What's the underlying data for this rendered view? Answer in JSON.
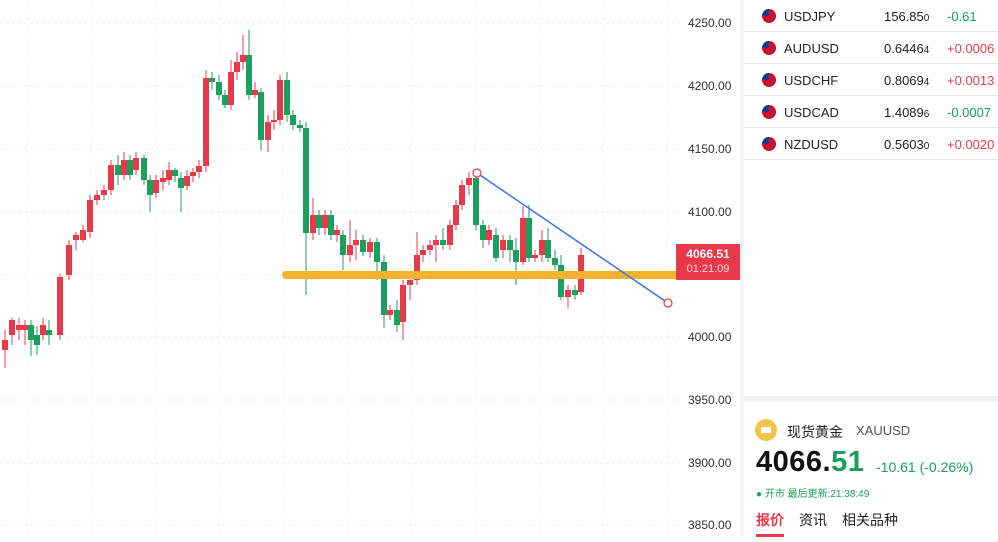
{
  "chart": {
    "y_axis_ticks": [
      "4250.00",
      "4200.00",
      "4150.00",
      "4100.00",
      "4000.00",
      "3950.00",
      "3900.00",
      "3850.00"
    ],
    "current_price": "4066.51",
    "countdown": "01:21:09",
    "up_color": "#e8394a",
    "down_color": "#19a05f",
    "support_line_color": "#f7b22e",
    "trendline_color": "#3a6ff0"
  },
  "watchlist": [
    {
      "symbol": "USDJPY",
      "last_main": "156.85",
      "last_sub": "0",
      "change": "-0.61",
      "direction": "down",
      "flag_icon": "us-flag-icon"
    },
    {
      "symbol": "AUDUSD",
      "last_main": "0.6446",
      "last_sub": "4",
      "change": "+0.0006",
      "direction": "up",
      "flag_icon": "au-flag-icon"
    },
    {
      "symbol": "USDCHF",
      "last_main": "0.8069",
      "last_sub": "4",
      "change": "+0.0013",
      "direction": "up",
      "flag_icon": "ch-flag-icon"
    },
    {
      "symbol": "USDCAD",
      "last_main": "1.4089",
      "last_sub": "6",
      "change": "-0.0007",
      "direction": "down",
      "flag_icon": "ca-flag-icon"
    },
    {
      "symbol": "NZDUSD",
      "last_main": "0.5603",
      "last_sub": "0",
      "change": "+0.0020",
      "direction": "up",
      "flag_icon": "nz-flag-icon"
    }
  ],
  "quote": {
    "name": "现货黄金",
    "code": "XAUUSD",
    "price_int": "4066.",
    "price_dec": "51",
    "change": "-10.61 (-0.26%)",
    "status": "● 开市  最后更新:21:38:49",
    "tabs": [
      "报价",
      "资讯",
      "相关品种"
    ],
    "icon": "gold-bar-icon"
  }
}
